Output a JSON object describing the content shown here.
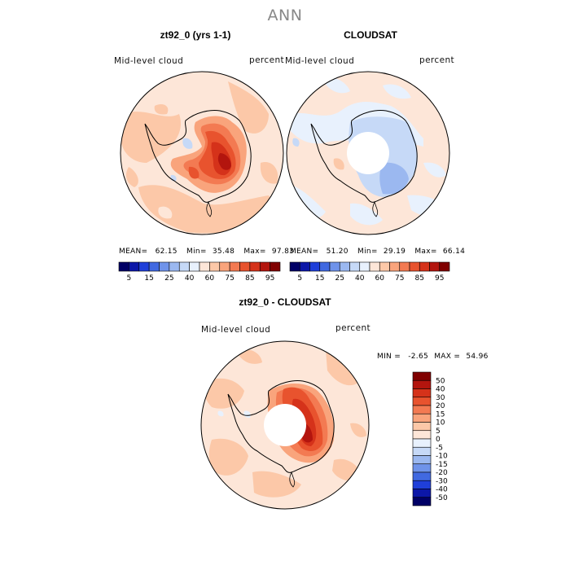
{
  "figure_title": "ANN",
  "panels": [
    {
      "title": "zt92_0 (yrs 1-1)",
      "left_label": "Mid-level cloud",
      "right_label": "percent",
      "stats": {
        "mean_label": "MEAN=",
        "mean": "62.15",
        "min_label": "Min=",
        "min": "35.48",
        "max_label": "Max=",
        "max": "97.83"
      }
    },
    {
      "title": "CLOUDSAT",
      "left_label": "Mid-level cloud",
      "right_label": "percent",
      "stats": {
        "mean_label": "MEAN=",
        "mean": "51.20",
        "min_label": "Min=",
        "min": "29.19",
        "max_label": "Max=",
        "max": "66.14"
      }
    },
    {
      "title": "zt92_0 - CLOUDSAT",
      "left_label": "Mid-level cloud",
      "right_label": "percent",
      "stats": {
        "min_label": "MIN =",
        "min": "-2.65",
        "max_label": "MAX =",
        "max": "54.96"
      }
    }
  ],
  "abs_colorbar": {
    "labels": [
      "5",
      "15",
      "25",
      "40",
      "60",
      "75",
      "85",
      "95"
    ],
    "colors": [
      "#000066",
      "#0c17a8",
      "#1f3fd9",
      "#4169e1",
      "#6f93ea",
      "#9bb8f0",
      "#c6d9f7",
      "#e8f1fd",
      "#fde6d8",
      "#fcc8a8",
      "#f9a47c",
      "#f37a52",
      "#e8532e",
      "#d5321a",
      "#b3150e",
      "#800000"
    ]
  },
  "diff_colorbar": {
    "labels": [
      "50",
      "40",
      "30",
      "20",
      "15",
      "10",
      "5",
      "0",
      "-5",
      "-10",
      "-15",
      "-20",
      "-30",
      "-40",
      "-50"
    ],
    "colors": [
      "#800000",
      "#b3150e",
      "#d5321a",
      "#e8532e",
      "#f37a52",
      "#f9a47c",
      "#fcc8a8",
      "#fde6d8",
      "#e8f1fd",
      "#c6d9f7",
      "#9bb8f0",
      "#6f93ea",
      "#4169e1",
      "#1f3fd9",
      "#0c17a8",
      "#000066"
    ]
  }
}
